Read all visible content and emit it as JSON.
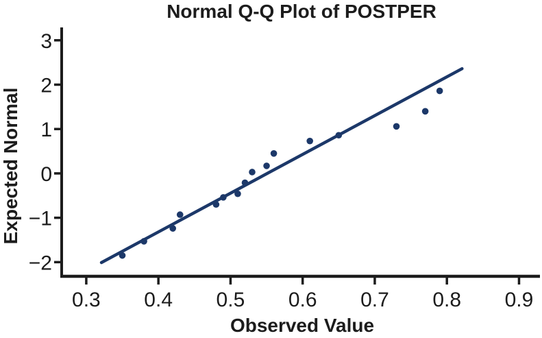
{
  "chart_data": {
    "type": "scatter",
    "title": "Normal Q-Q Plot of POSTPER",
    "xlabel": "Observed Value",
    "ylabel": "Expected Normal",
    "xlim": [
      0.264,
      0.929
    ],
    "ylim": [
      -2.35,
      3.29
    ],
    "x_ticks": [
      0.3,
      0.4,
      0.5,
      0.6,
      0.7,
      0.8,
      0.9
    ],
    "x_tick_labels": [
      "0.3",
      "0.4",
      "0.5",
      "0.6",
      "0.7",
      "0.8",
      "0.9"
    ],
    "y_ticks": [
      3,
      2,
      1,
      0,
      -1,
      -2
    ],
    "y_tick_labels": [
      "3",
      "2",
      "1",
      "0",
      "−1",
      "−2"
    ],
    "grid": false,
    "legend": "none",
    "points": [
      [
        0.35,
        -1.85
      ],
      [
        0.38,
        -1.53
      ],
      [
        0.42,
        -1.24
      ],
      [
        0.43,
        -0.93
      ],
      [
        0.48,
        -0.7
      ],
      [
        0.49,
        -0.54
      ],
      [
        0.51,
        -0.46
      ],
      [
        0.52,
        -0.21
      ],
      [
        0.53,
        0.03
      ],
      [
        0.55,
        0.17
      ],
      [
        0.56,
        0.45
      ],
      [
        0.61,
        0.73
      ],
      [
        0.65,
        0.86
      ],
      [
        0.73,
        1.06
      ],
      [
        0.77,
        1.4
      ],
      [
        0.79,
        1.86
      ]
    ],
    "trend_line": {
      "x1": 0.321,
      "y1": -2.01,
      "x2": 0.821,
      "y2": 2.36
    },
    "colors": {
      "points": "#1c3869",
      "line": "#1c3869",
      "axis": "#1c1c1c",
      "text": "#1c1c1c",
      "background": "#ffffff"
    }
  }
}
